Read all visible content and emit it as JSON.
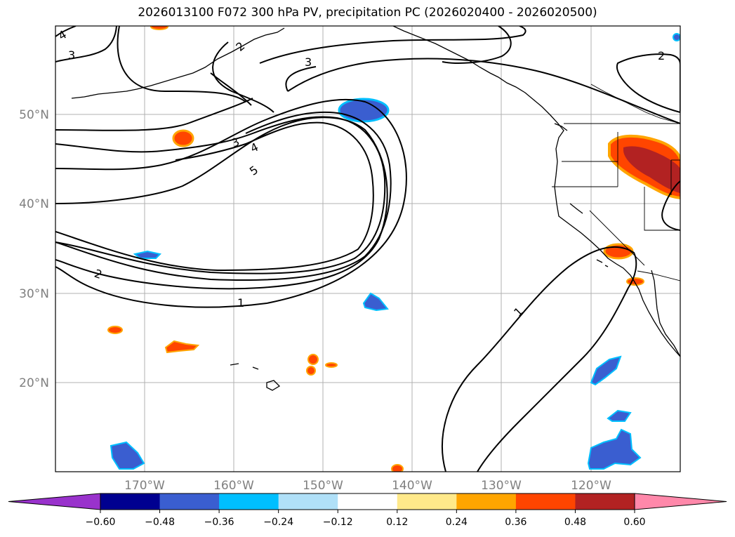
{
  "title": "2026013100 F072 300 hPa PV, precipitation PC (2026020400 - 2026020500)",
  "map": {
    "lon_range": [
      -180,
      -110
    ],
    "lat_range": [
      10,
      60
    ],
    "lon_labels": [
      "170°W",
      "160°W",
      "150°W",
      "140°W",
      "130°W",
      "120°W"
    ],
    "lat_labels": [
      "50°N",
      "40°N",
      "30°N",
      "20°N"
    ],
    "grid": true,
    "contour_field": "300 hPa PV",
    "contour_labels": [
      "4",
      "3",
      "2",
      "3",
      "2",
      "3",
      "4",
      "5",
      "2",
      "1",
      "1"
    ],
    "shaded_field": "precipitation PC"
  },
  "colorbar": {
    "ticks": [
      "−0.60",
      "−0.48",
      "−0.36",
      "−0.24",
      "−0.12",
      "0.12",
      "0.24",
      "0.36",
      "0.48",
      "0.60"
    ],
    "colors": [
      "#9932cc",
      "#000090",
      "#3a5ed0",
      "#00bfff",
      "#b0e0f8",
      "#ffffff",
      "#ffe98a",
      "#ffa500",
      "#ff4500",
      "#b22222",
      "#ff88aa"
    ],
    "extend": "both"
  }
}
